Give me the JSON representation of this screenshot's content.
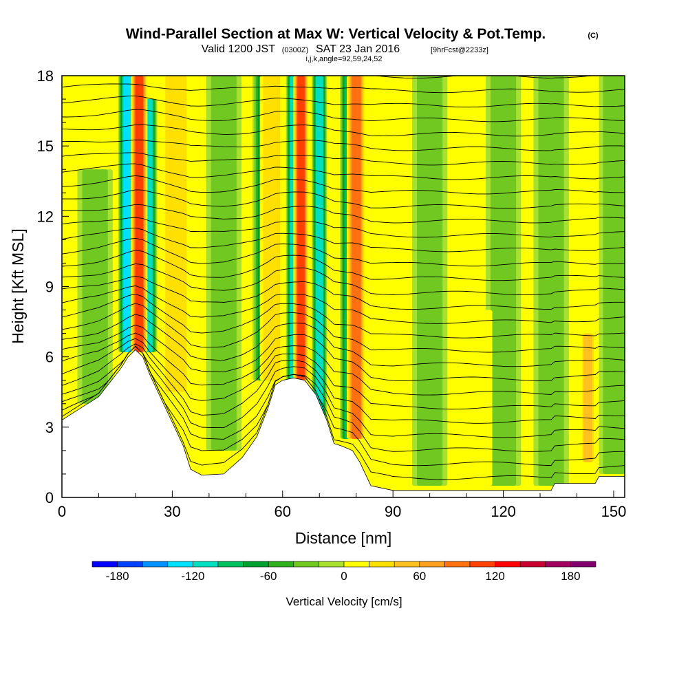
{
  "header": {
    "title": "Wind-Parallel Section at Max W: Vertical Velocity & Pot.Temp.",
    "title_mark": "(C)",
    "valid_prefix": "Valid 1200 JST",
    "valid_utc": "(0300Z)",
    "valid_date": "SAT 23 Jan 2016",
    "forecast": "[9hrFcst@2233z]",
    "indices": "i,j,k,angle=92,59,24,52"
  },
  "chart_data": {
    "type": "heatmap",
    "xlabel": "Distance [nm]",
    "ylabel": "Height [Kft MSL]",
    "xlim": [
      0,
      153
    ],
    "ylim": [
      0,
      18
    ],
    "x_ticks": [
      {
        "label": "0",
        "value": 0
      },
      {
        "label": "30",
        "value": 30
      },
      {
        "label": "60",
        "value": 60
      },
      {
        "label": "90",
        "value": 90
      },
      {
        "label": "120",
        "value": 120
      },
      {
        "label": "150",
        "value": 150
      }
    ],
    "y_ticks": [
      {
        "label": "0",
        "value": 0
      },
      {
        "label": "3",
        "value": 3
      },
      {
        "label": "6",
        "value": 6
      },
      {
        "label": "9",
        "value": 9
      },
      {
        "label": "12",
        "value": 12
      },
      {
        "label": "15",
        "value": 15
      },
      {
        "label": "18",
        "value": 18
      }
    ],
    "colorbar": {
      "label": "Vertical Velocity [cm/s]",
      "range": [
        -200,
        200
      ],
      "step": 20,
      "tick_labels": [
        {
          "label": "-180",
          "value": -180
        },
        {
          "label": "-120",
          "value": -120
        },
        {
          "label": "-60",
          "value": -60
        },
        {
          "label": "0",
          "value": 0
        },
        {
          "label": "60",
          "value": 60
        },
        {
          "label": "120",
          "value": 120
        },
        {
          "label": "180",
          "value": 180
        }
      ],
      "colors": [
        "#0000ff",
        "#0040ff",
        "#0090ff",
        "#00e0ff",
        "#00e0c0",
        "#00c060",
        "#00a030",
        "#30b020",
        "#70c820",
        "#a8e030",
        "#ffff00",
        "#ffe000",
        "#ffc020",
        "#ffa020",
        "#ff7010",
        "#ff4000",
        "#ff0000",
        "#c80030",
        "#a00060",
        "#800070"
      ]
    },
    "terrain": [
      [
        0,
        3.3
      ],
      [
        5,
        3.8
      ],
      [
        10,
        4.3
      ],
      [
        13,
        4.9
      ],
      [
        16,
        5.5
      ],
      [
        18,
        6.0
      ],
      [
        20,
        6.3
      ],
      [
        22,
        6.0
      ],
      [
        24,
        5.2
      ],
      [
        27,
        4.2
      ],
      [
        30,
        3.2
      ],
      [
        33,
        2.2
      ],
      [
        35,
        1.2
      ],
      [
        38,
        0.95
      ],
      [
        44,
        1.0
      ],
      [
        49,
        1.7
      ],
      [
        53,
        2.6
      ],
      [
        56,
        3.8
      ],
      [
        58,
        4.8
      ],
      [
        60,
        5.0
      ],
      [
        63,
        5.1
      ],
      [
        66,
        5.0
      ],
      [
        69,
        4.4
      ],
      [
        72,
        3.3
      ],
      [
        74,
        2.3
      ],
      [
        76,
        2.2
      ],
      [
        79,
        2.0
      ],
      [
        81,
        1.5
      ],
      [
        84,
        0.5
      ],
      [
        90,
        0.3
      ],
      [
        100,
        0.3
      ],
      [
        120,
        0.3
      ],
      [
        133,
        0.3
      ],
      [
        134,
        0.6
      ],
      [
        145,
        0.6
      ],
      [
        146,
        0.9
      ],
      [
        153,
        0.9
      ]
    ],
    "updraft_bands": [
      {
        "x": 21,
        "w": 1.4,
        "y0": 6.2,
        "y1": 18,
        "value": 120
      },
      {
        "x": 65,
        "w": 1.3,
        "y0": 5.0,
        "y1": 18,
        "value": 120
      },
      {
        "x": 80,
        "w": 1.6,
        "y0": 2.5,
        "y1": 18,
        "value": 100
      },
      {
        "x": 31,
        "w": 2.5,
        "y0": 4.5,
        "y1": 18,
        "value": 40
      },
      {
        "x": 57,
        "w": 2.0,
        "y0": 5.0,
        "y1": 18,
        "value": 40
      },
      {
        "x": 143,
        "w": 1.2,
        "y0": 1.5,
        "y1": 7,
        "value": 60
      },
      {
        "x": 113,
        "w": 2.5,
        "y0": 0.5,
        "y1": 8,
        "value": 20
      }
    ],
    "downdraft_bands": [
      {
        "x": 18,
        "w": 1.7,
        "y0": 6.2,
        "y1": 18,
        "value": -140
      },
      {
        "x": 23.5,
        "w": 1.5,
        "y0": 6.2,
        "y1": 17,
        "value": -120
      },
      {
        "x": 63,
        "w": 1.3,
        "y0": 5.0,
        "y1": 18,
        "value": -110
      },
      {
        "x": 70,
        "w": 1.3,
        "y0": 3.0,
        "y1": 18,
        "value": -120
      },
      {
        "x": 78,
        "w": 1.5,
        "y0": 2.5,
        "y1": 18,
        "value": -90
      },
      {
        "x": 55,
        "w": 2.0,
        "y0": 5.0,
        "y1": 18,
        "value": -80
      },
      {
        "x": 44,
        "w": 3.0,
        "y0": 2.0,
        "y1": 18,
        "value": -40
      },
      {
        "x": 9,
        "w": 3.0,
        "y0": 4.0,
        "y1": 14,
        "value": -40
      },
      {
        "x": 100,
        "w": 3.0,
        "y0": 0.5,
        "y1": 18,
        "value": -30
      },
      {
        "x": 120,
        "w": 3.0,
        "y0": 0.5,
        "y1": 18,
        "value": -30
      },
      {
        "x": 133,
        "w": 3.0,
        "y0": 0.5,
        "y1": 18,
        "value": -30
      },
      {
        "x": 150,
        "w": 2.5,
        "y0": 1.0,
        "y1": 18,
        "value": -30
      }
    ],
    "theta_levels": 30
  }
}
